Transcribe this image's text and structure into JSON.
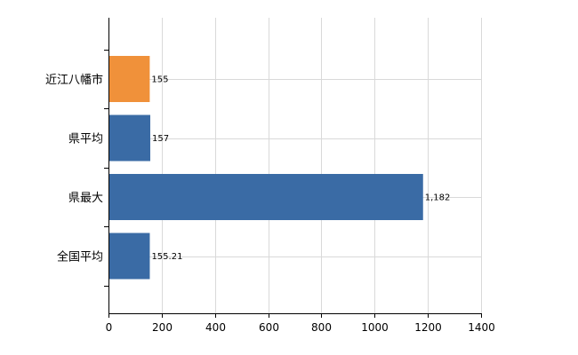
{
  "chart_data": {
    "type": "bar",
    "orientation": "horizontal",
    "categories": [
      "近江八幡市",
      "県平均",
      "県最大",
      "全国平均"
    ],
    "values": [
      155,
      157,
      1182,
      155.21
    ],
    "data_labels": [
      "155",
      "157",
      "1,182",
      "155.21"
    ],
    "bar_colors": [
      "#F0913A",
      "#3A6BA5",
      "#3A6BA5",
      "#3A6BA5"
    ],
    "xlim": [
      0,
      1400
    ],
    "xticks": [
      0,
      200,
      400,
      600,
      800,
      1000,
      1200,
      1400
    ],
    "grid": true,
    "title": "",
    "xlabel": "",
    "ylabel": "",
    "legend": "none"
  }
}
